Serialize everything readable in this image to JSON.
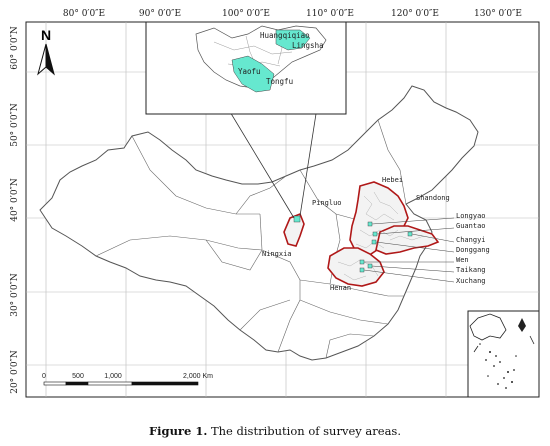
{
  "map": {
    "top_longitudes": [
      "80° 0′0″E",
      "90° 0′0″E",
      "100° 0′0″E",
      "110° 0′0″E",
      "120° 0′0″E",
      "130° 0′0″E"
    ],
    "left_latitudes": [
      "60° 0′0″N",
      "50° 0′0″N",
      "40° 0′0″N",
      "30° 0′0″N",
      "20° 0′0″N"
    ],
    "north_arrow": "N",
    "provinces": [
      "Hebei",
      "Shandong",
      "Ningxia",
      "Henan"
    ],
    "counties_main": [
      "Pingluo",
      "Longyao",
      "Guantao",
      "Changyi",
      "Donggang",
      "Wen",
      "Taikang",
      "Xuchang"
    ],
    "inset_labels": [
      "Huangqiqiao",
      "Lingsha",
      "Yaofu",
      "Tongfu"
    ],
    "scale_bar": [
      "0",
      "500",
      "1,000",
      "2,000 Km"
    ],
    "colors": {
      "survey_area": "#66e8cf",
      "province_outline": "#b01818",
      "boundary": "#555555"
    }
  },
  "caption": {
    "label": "Figure 1.",
    "text": " The distribution of survey areas."
  }
}
